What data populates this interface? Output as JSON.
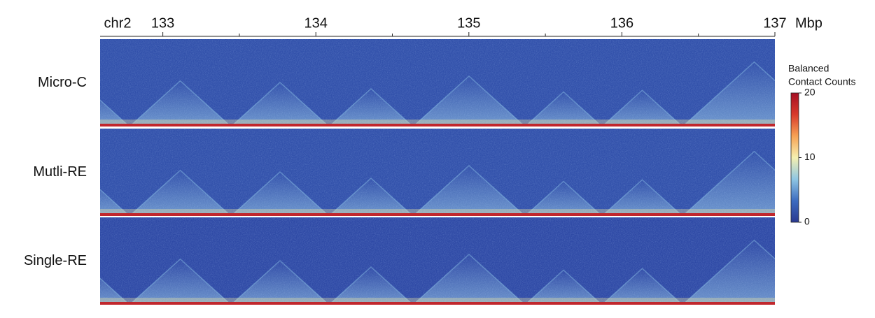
{
  "chart_data": {
    "type": "heatmap",
    "chromosome": "chr2",
    "x_unit": "Mbp",
    "xlim": [
      132.59,
      137
    ],
    "xticks": [
      133,
      134,
      135,
      136,
      137
    ],
    "xminorticks": [
      133.5,
      134.5,
      135.5,
      136.5
    ],
    "panels": [
      {
        "name": "Micro-C"
      },
      {
        "name": "Mutli-RE"
      },
      {
        "name": "Single-RE"
      }
    ],
    "colorbar": {
      "title_lines": [
        "Balanced",
        "Contact Counts"
      ],
      "lim": [
        0,
        20
      ],
      "ticks": [
        0,
        10,
        20
      ],
      "colors": [
        "#2a3990",
        "#3d6cc0",
        "#8fc6e3",
        "#f5f0b0",
        "#f7a254",
        "#d83a2a",
        "#a50f24"
      ]
    }
  }
}
